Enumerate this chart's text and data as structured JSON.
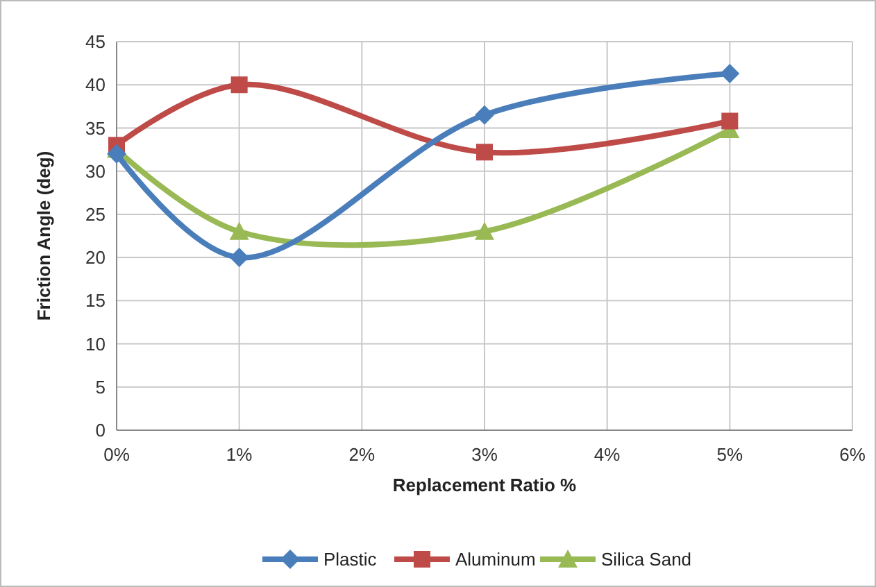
{
  "chart_data": {
    "type": "line",
    "xlabel": "Replacement Ratio %",
    "ylabel": "Friction Angle (deg)",
    "x": [
      0,
      1,
      3,
      5
    ],
    "xlim": [
      0,
      6
    ],
    "xticks": [
      {
        "value": 0,
        "label": "0%"
      },
      {
        "value": 1,
        "label": "1%"
      },
      {
        "value": 2,
        "label": "2%"
      },
      {
        "value": 3,
        "label": "3%"
      },
      {
        "value": 4,
        "label": "4%"
      },
      {
        "value": 5,
        "label": "5%"
      },
      {
        "value": 6,
        "label": "6%"
      }
    ],
    "ylim": [
      0,
      45
    ],
    "yticks": [
      0,
      5,
      10,
      15,
      20,
      25,
      30,
      35,
      40,
      45
    ],
    "grid": true,
    "legend": "bottom",
    "line_style": "solid",
    "series": [
      {
        "name": "Plastic",
        "color": "#4a7ebb",
        "marker": "diamond",
        "values": [
          32,
          20,
          36.5,
          41.3
        ]
      },
      {
        "name": "Aluminum",
        "color": "#be4b48",
        "marker": "square",
        "values": [
          33,
          40,
          32.2,
          35.8
        ]
      },
      {
        "name": "Silica Sand",
        "color": "#98b954",
        "marker": "triangle",
        "values": [
          32.5,
          23,
          23,
          34.8
        ]
      }
    ]
  }
}
